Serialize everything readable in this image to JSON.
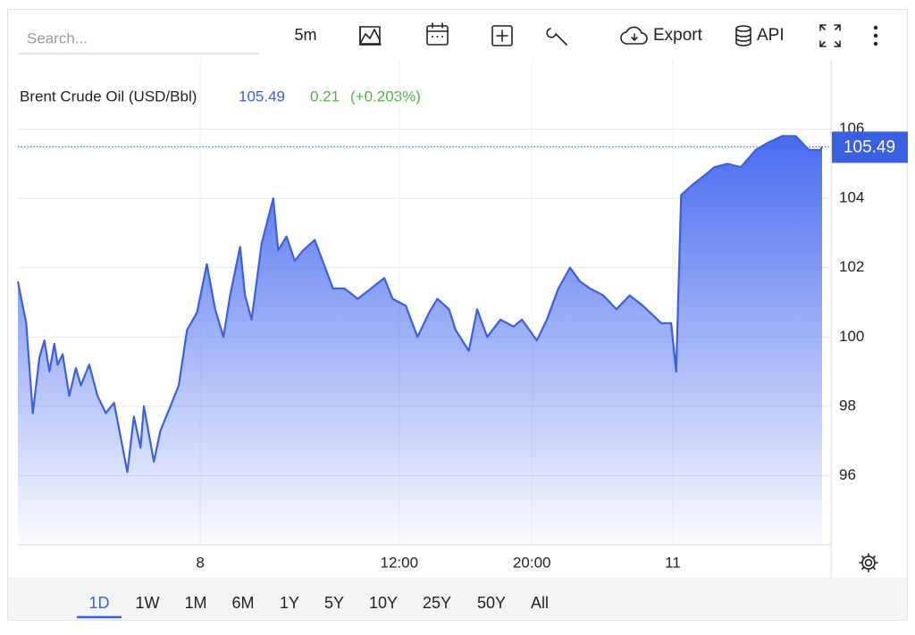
{
  "toolbar": {
    "search_placeholder": "Search...",
    "interval": "5m",
    "export": "Export",
    "api": "API"
  },
  "chart_data": {
    "type": "area",
    "title": "Brent Crude Oil (USD/Bbl)",
    "change": "0.21",
    "change_pct": "(+0.203%)",
    "color": "#3a5fe0",
    "change_color": "#4cb648",
    "x": [
      -11,
      -10.5,
      -10.1,
      -9.7,
      -9.4,
      -9.1,
      -8.8,
      -8.6,
      -8.3,
      -7.9,
      -7.5,
      -7.2,
      -6.7,
      -6.2,
      -5.7,
      -5.2,
      -4.8,
      -4.4,
      -4.0,
      -3.6,
      -3.4,
      -2.8,
      -2.4,
      -1.8,
      -1.3,
      -0.8,
      -0.2,
      0.4,
      0.9,
      1.4,
      1.8,
      2.4,
      2.7,
      3.1,
      3.7,
      4.4,
      4.7,
      5.2,
      5.7,
      6.2,
      6.9,
      7.3,
      8.0,
      8.7,
      9.5,
      10.3,
      11.1,
      11.6,
      12.4,
      13.1,
      13.8,
      14.3,
      15.0,
      15.4,
      16.2,
      16.7,
      17.3,
      18.1,
      18.9,
      19.4,
      20.3,
      20.9,
      21.6,
      22.3,
      22.9,
      23.5,
      24.3,
      25.1,
      25.9,
      26.7,
      27.8,
      28.4,
      28.7,
      29.0,
      29.7,
      30.5,
      31.0,
      31.8,
      32.6,
      33.5,
      34.2,
      35.1,
      35.9,
      36.7,
      37.4,
      37.5
    ],
    "values": [
      101.6,
      100.4,
      97.8,
      99.4,
      99.9,
      99.0,
      99.8,
      99.2,
      99.5,
      98.3,
      99.1,
      98.6,
      99.2,
      98.3,
      97.8,
      98.1,
      97.1,
      96.1,
      97.7,
      96.8,
      98.0,
      96.4,
      97.3,
      98.0,
      98.6,
      100.2,
      100.7,
      102.1,
      100.8,
      100.0,
      101.2,
      102.6,
      101.2,
      100.5,
      102.7,
      104.0,
      102.5,
      102.9,
      102.2,
      102.5,
      102.8,
      102.3,
      101.4,
      101.4,
      101.1,
      101.4,
      101.7,
      101.1,
      100.9,
      100.0,
      100.7,
      101.1,
      100.8,
      100.2,
      99.6,
      100.8,
      100.0,
      100.5,
      100.3,
      100.5,
      99.9,
      100.5,
      101.4,
      102.0,
      101.6,
      101.4,
      101.2,
      100.8,
      101.2,
      100.9,
      100.4,
      100.4,
      99.0,
      104.1,
      104.4,
      104.7,
      104.9,
      105.0,
      104.9,
      105.4,
      105.6,
      105.8,
      105.8,
      105.4,
      105.4,
      105.49
    ],
    "xlim": [
      -11,
      37.5
    ],
    "xticks": [
      {
        "value": 0,
        "label": "8"
      },
      {
        "value": 12,
        "label": "12:00"
      },
      {
        "value": 20,
        "label": "20:00"
      },
      {
        "value": 28.5,
        "label": "11"
      }
    ],
    "ylim": [
      94,
      108
    ],
    "yticks": [
      96,
      98,
      100,
      102,
      104,
      106
    ],
    "grid": true
  },
  "range_buttons": {
    "options": [
      "1D",
      "1W",
      "1M",
      "6M",
      "1Y",
      "5Y",
      "10Y",
      "25Y",
      "50Y",
      "All"
    ],
    "active": 0
  }
}
